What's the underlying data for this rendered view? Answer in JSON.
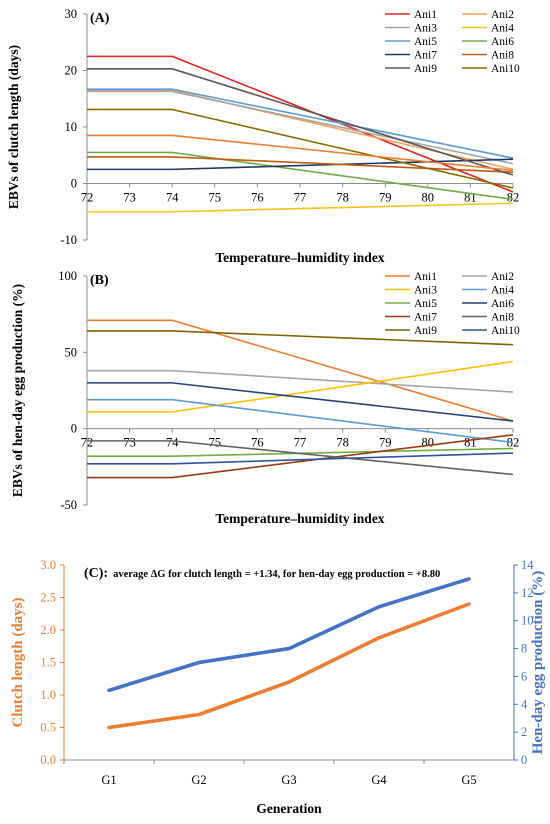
{
  "chart_data": [
    {
      "type": "line",
      "panel_label": "(A)",
      "xlabel": "Temperature–humidity index",
      "ylabel": "EBVs of clutch length (days)",
      "x": [
        72,
        74,
        82
      ],
      "xticks": [
        72,
        73,
        74,
        75,
        76,
        77,
        78,
        79,
        80,
        81,
        82
      ],
      "xlim": [
        72,
        82
      ],
      "ylim": [
        -10,
        30
      ],
      "yticks": [
        -10,
        0,
        10,
        20,
        30
      ],
      "xtick_labels_on_zero_line": true,
      "grid": false,
      "legend_position": "top-right",
      "series": [
        {
          "name": "Ani1",
          "color": "#e2231a",
          "values": [
            22.5,
            22.5,
            -1.5
          ]
        },
        {
          "name": "Ani2",
          "color": "#f4a259",
          "values": [
            16.5,
            16.5,
            2.5
          ]
        },
        {
          "name": "Ani3",
          "color": "#a6a6a6",
          "values": [
            16.3,
            16.3,
            3.5
          ]
        },
        {
          "name": "Ani4",
          "color": "#f5c518",
          "values": [
            -5,
            -5,
            -3.5
          ]
        },
        {
          "name": "Ani5",
          "color": "#5b9bd5",
          "values": [
            16.7,
            16.7,
            4.5
          ]
        },
        {
          "name": "Ani6",
          "color": "#70ad47",
          "values": [
            5.5,
            5.5,
            -2.8
          ]
        },
        {
          "name": "Ani7",
          "color": "#1f3864",
          "values": [
            2.5,
            2.5,
            4.3
          ]
        },
        {
          "name": "Ani8",
          "color": "#c55a11",
          "values": [
            4.7,
            4.7,
            2
          ]
        },
        {
          "name": "Ani9",
          "color": "#595959",
          "values": [
            20.3,
            20.3,
            1.5
          ]
        },
        {
          "name": "Ani10",
          "color": "#8b6a00",
          "values": [
            13.1,
            13.1,
            -0.8
          ]
        },
        {
          "name": "",
          "color": "#ed7d31",
          "values": [
            8.5,
            8.5,
            2.3
          ]
        }
      ]
    },
    {
      "type": "line",
      "panel_label": "(B)",
      "xlabel": "Temperature–humidity index",
      "ylabel": "EBVs of hen-day egg production (%)",
      "x": [
        72,
        74,
        82
      ],
      "xticks": [
        72,
        73,
        74,
        75,
        76,
        77,
        78,
        79,
        80,
        81,
        82
      ],
      "xlim": [
        72,
        82
      ],
      "ylim": [
        -50,
        100
      ],
      "yticks": [
        -50,
        0,
        50,
        100
      ],
      "xtick_labels_on_zero_line": true,
      "grid": false,
      "legend_position": "top-right",
      "series": [
        {
          "name": "Ani1",
          "color": "#ed7d31",
          "values": [
            71,
            71,
            5
          ]
        },
        {
          "name": "Ani2",
          "color": "#a5a5a5",
          "values": [
            38,
            38,
            24
          ]
        },
        {
          "name": "Ani3",
          "color": "#ffc000",
          "values": [
            11,
            11,
            44
          ]
        },
        {
          "name": "Ani4",
          "color": "#5b9bd5",
          "values": [
            19,
            19,
            -9
          ]
        },
        {
          "name": "Ani5",
          "color": "#70ad47",
          "values": [
            -18,
            -18,
            -13
          ]
        },
        {
          "name": "Ani6",
          "color": "#264478",
          "values": [
            30,
            30,
            5
          ]
        },
        {
          "name": "Ani7",
          "color": "#9e3a12",
          "values": [
            -32,
            -32,
            -4
          ]
        },
        {
          "name": "Ani8",
          "color": "#636363",
          "values": [
            -8,
            -8,
            -30
          ]
        },
        {
          "name": "Ani9",
          "color": "#806000",
          "values": [
            64,
            64,
            55
          ]
        },
        {
          "name": "Ani10",
          "color": "#2f5597",
          "values": [
            -23,
            -23,
            -16
          ]
        }
      ]
    },
    {
      "type": "line",
      "panel_label": "(C):",
      "annotation": "average ΔG for clutch length = +1.34, for hen-day egg production = +8.80",
      "categories": [
        "G1",
        "G2",
        "G3",
        "G4",
        "G5"
      ],
      "xlabel": "Generation",
      "ylabel_left": "Clutch length (days)",
      "ylabel_right": "Hen-day egg production (%)",
      "ylim_left": [
        0,
        3
      ],
      "yticks_left": [
        "0.0",
        "0.5",
        "1.0",
        "1.5",
        "2.0",
        "2.5",
        "3.0"
      ],
      "ylim_right": [
        0,
        14
      ],
      "yticks_right": [
        "0",
        "2",
        "4",
        "6",
        "8",
        "10",
        "12",
        "14"
      ],
      "grid": false,
      "series": [
        {
          "name": "",
          "axis": "left",
          "color": "#ed7d31",
          "values": [
            0.5,
            0.7,
            1.2,
            1.88,
            2.4
          ]
        },
        {
          "name": "",
          "axis": "right",
          "color": "#4472c4",
          "values": [
            5,
            7,
            8,
            11,
            13
          ]
        }
      ]
    }
  ]
}
